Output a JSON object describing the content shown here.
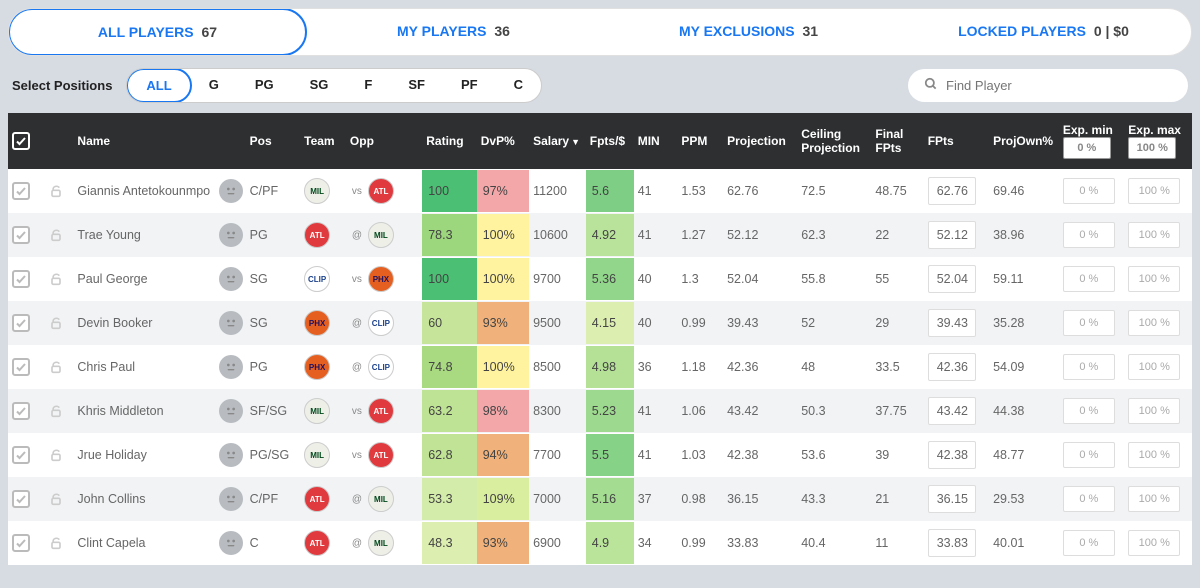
{
  "tabs": [
    {
      "label": "ALL PLAYERS",
      "count": "67",
      "active": true
    },
    {
      "label": "MY PLAYERS",
      "count": "36",
      "active": false
    },
    {
      "label": "MY EXCLUSIONS",
      "count": "31",
      "active": false
    },
    {
      "label": "LOCKED PLAYERS",
      "count": "0 | $0",
      "active": false
    }
  ],
  "select_positions_label": "Select Positions",
  "positions": [
    "ALL",
    "G",
    "PG",
    "SG",
    "F",
    "SF",
    "PF",
    "C"
  ],
  "active_position": "ALL",
  "search_placeholder": "Find Player",
  "columns": {
    "name": "Name",
    "pos": "Pos",
    "team": "Team",
    "opp": "Opp",
    "rating": "Rating",
    "dvp": "DvP%",
    "salary": "Salary",
    "fptsd": "Fpts/$",
    "min": "MIN",
    "ppm": "PPM",
    "proj": "Projection",
    "ceil": "Ceiling Projection",
    "final": "Final FPts",
    "fpts": "FPts",
    "own": "ProjOwn%",
    "expmin": "Exp. min",
    "expmax": "Exp. max"
  },
  "header_inputs": {
    "expmin": "0  %",
    "expmax": "100 %"
  },
  "teams": {
    "MIL": {
      "bg": "#eef0e8",
      "fg": "#00471b",
      "label": "MIL"
    },
    "ATL": {
      "bg": "#e03a3e",
      "fg": "#ffffff",
      "label": "ATL"
    },
    "LAC": {
      "bg": "#ffffff",
      "fg": "#1d428a",
      "label": "CLIP"
    },
    "PHX": {
      "bg": "#e56020",
      "fg": "#1d1160",
      "label": "PHX"
    }
  },
  "heat_colors": {
    "rating": {
      "100": "#4bbf73",
      "78.3": "#9cd67d",
      "60": "#c6e59a",
      "74.8": "#a9da82",
      "63.2": "#bfe394",
      "62.8": "#c0e395",
      "53.3": "#d4eca9",
      "48.3": "#dceeb0"
    },
    "dvp": {
      "97%": "#f3a7a9",
      "100%": "#fff3a0",
      "93%": "#f0b27a",
      "98%": "#f3a7a9",
      "94%": "#f0b27a",
      "109%": "#d9ee9e"
    },
    "fptsd": {
      "5.6": "#7ecf85",
      "4.92": "#b9e39a",
      "5.36": "#92d68c",
      "4.15": "#dceeb0",
      "4.98": "#b5e197",
      "5.23": "#9dd98f",
      "5.5": "#86d287",
      "5.16": "#a4dc92",
      "4.9": "#bbe49b"
    }
  },
  "rows": [
    {
      "name": "Giannis Antetokounmpo",
      "pos": "C/PF",
      "team": "MIL",
      "vs": "vs",
      "opp": "ATL",
      "rating": "100",
      "dvp": "97%",
      "salary": "11200",
      "fptsd": "5.6",
      "min": "41",
      "ppm": "1.53",
      "proj": "62.76",
      "ceil": "72.5",
      "final": "48.75",
      "fpts": "62.76",
      "own": "69.46",
      "expmin": "0  %",
      "expmax": "100 %"
    },
    {
      "name": "Trae Young",
      "pos": "PG",
      "team": "ATL",
      "vs": "@",
      "opp": "MIL",
      "rating": "78.3",
      "dvp": "100%",
      "salary": "10600",
      "fptsd": "4.92",
      "min": "41",
      "ppm": "1.27",
      "proj": "52.12",
      "ceil": "62.3",
      "final": "22",
      "fpts": "52.12",
      "own": "38.96",
      "expmin": "0  %",
      "expmax": "100 %"
    },
    {
      "name": "Paul George",
      "pos": "SG",
      "team": "LAC",
      "vs": "vs",
      "opp": "PHX",
      "rating": "100",
      "dvp": "100%",
      "salary": "9700",
      "fptsd": "5.36",
      "min": "40",
      "ppm": "1.3",
      "proj": "52.04",
      "ceil": "55.8",
      "final": "55",
      "fpts": "52.04",
      "own": "59.11",
      "expmin": "0  %",
      "expmax": "100 %"
    },
    {
      "name": "Devin Booker",
      "pos": "SG",
      "team": "PHX",
      "vs": "@",
      "opp": "LAC",
      "rating": "60",
      "dvp": "93%",
      "salary": "9500",
      "fptsd": "4.15",
      "min": "40",
      "ppm": "0.99",
      "proj": "39.43",
      "ceil": "52",
      "final": "29",
      "fpts": "39.43",
      "own": "35.28",
      "expmin": "0  %",
      "expmax": "100 %"
    },
    {
      "name": "Chris Paul",
      "pos": "PG",
      "team": "PHX",
      "vs": "@",
      "opp": "LAC",
      "rating": "74.8",
      "dvp": "100%",
      "salary": "8500",
      "fptsd": "4.98",
      "min": "36",
      "ppm": "1.18",
      "proj": "42.36",
      "ceil": "48",
      "final": "33.5",
      "fpts": "42.36",
      "own": "54.09",
      "expmin": "0  %",
      "expmax": "100 %"
    },
    {
      "name": "Khris Middleton",
      "pos": "SF/SG",
      "team": "MIL",
      "vs": "vs",
      "opp": "ATL",
      "rating": "63.2",
      "dvp": "98%",
      "salary": "8300",
      "fptsd": "5.23",
      "min": "41",
      "ppm": "1.06",
      "proj": "43.42",
      "ceil": "50.3",
      "final": "37.75",
      "fpts": "43.42",
      "own": "44.38",
      "expmin": "0  %",
      "expmax": "100 %"
    },
    {
      "name": "Jrue Holiday",
      "pos": "PG/SG",
      "team": "MIL",
      "vs": "vs",
      "opp": "ATL",
      "rating": "62.8",
      "dvp": "94%",
      "salary": "7700",
      "fptsd": "5.5",
      "min": "41",
      "ppm": "1.03",
      "proj": "42.38",
      "ceil": "53.6",
      "final": "39",
      "fpts": "42.38",
      "own": "48.77",
      "expmin": "0  %",
      "expmax": "100 %"
    },
    {
      "name": "John Collins",
      "pos": "C/PF",
      "team": "ATL",
      "vs": "@",
      "opp": "MIL",
      "rating": "53.3",
      "dvp": "109%",
      "salary": "7000",
      "fptsd": "5.16",
      "min": "37",
      "ppm": "0.98",
      "proj": "36.15",
      "ceil": "43.3",
      "final": "21",
      "fpts": "36.15",
      "own": "29.53",
      "expmin": "0  %",
      "expmax": "100 %"
    },
    {
      "name": "Clint Capela",
      "pos": "C",
      "team": "ATL",
      "vs": "@",
      "opp": "MIL",
      "rating": "48.3",
      "dvp": "93%",
      "salary": "6900",
      "fptsd": "4.9",
      "min": "34",
      "ppm": "0.99",
      "proj": "33.83",
      "ceil": "40.4",
      "final": "11",
      "fpts": "33.83",
      "own": "40.01",
      "expmin": "0  %",
      "expmax": "100 %"
    }
  ]
}
